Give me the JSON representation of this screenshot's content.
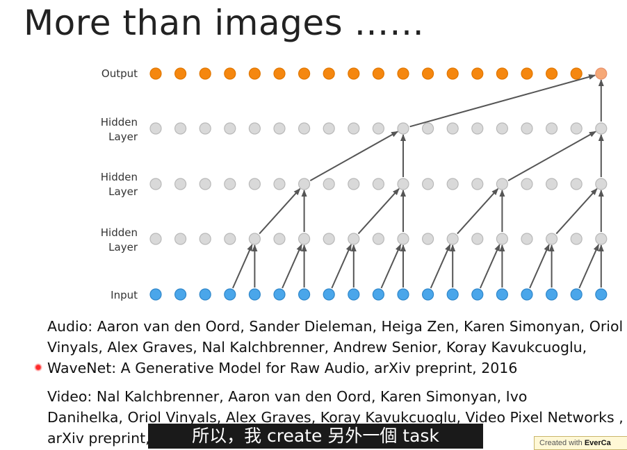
{
  "title": "More than images ……",
  "diagram": {
    "row_labels": {
      "output": "Output",
      "hidden3": [
        "Hidden",
        "Layer"
      ],
      "hidden2": [
        "Hidden",
        "Layer"
      ],
      "hidden1": [
        "Hidden",
        "Layer"
      ],
      "input": "Input"
    },
    "nodes_per_row": 19,
    "colors": {
      "output": "#f5870f",
      "output_active": "#f6a877",
      "hidden": "#d9d9d9",
      "input": "#4aa6ea",
      "arrow": "#555555"
    }
  },
  "references": {
    "audio": [
      "Audio: Aaron van den Oord, Sander Dieleman, Heiga Zen, Karen Simonyan, Oriol",
      "Vinyals, Alex Graves, Nal Kalchbrenner, Andrew Senior, Koray Kavukcuoglu,",
      "WaveNet: A Generative Model for Raw Audio, arXiv preprint, 2016"
    ],
    "video": [
      "Video: Nal Kalchbrenner, Aaron van den Oord, Karen Simonyan, Ivo",
      "Danihelka, Oriol Vinyals, Alex Graves, Koray Kavukcuoglu, Video Pixel Networks ,",
      "arXiv preprint, 2016"
    ]
  },
  "subtitle": "所以，我 create 另外一個 task",
  "watermark": {
    "prefix": "Created with ",
    "brand": "EverCa"
  }
}
